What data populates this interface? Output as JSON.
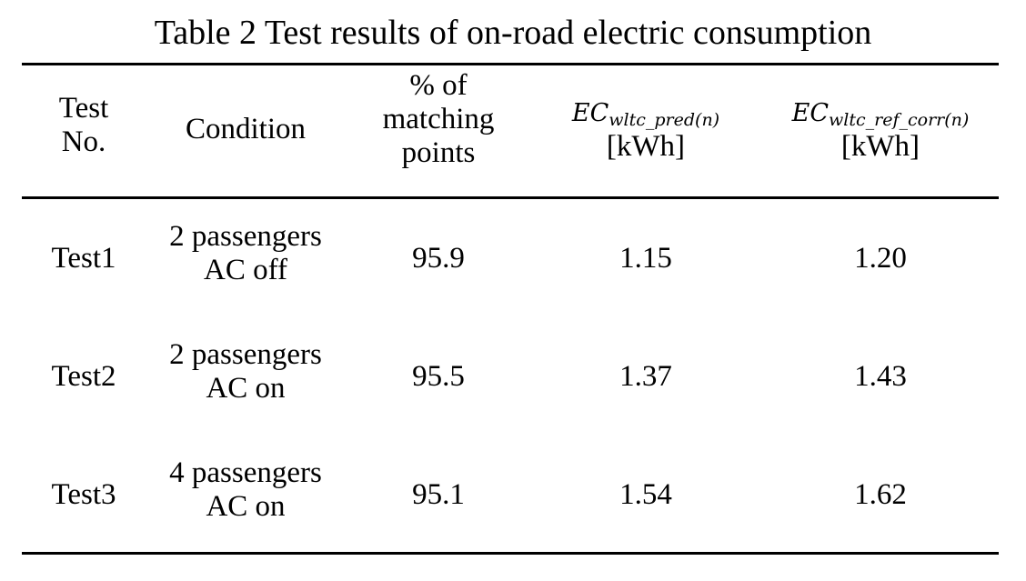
{
  "title": "Table 2 Test results of on-road electric consumption",
  "header": {
    "test_no": [
      "Test",
      "No."
    ],
    "condition": "Condition",
    "matching": [
      "% of",
      "matching",
      "points"
    ],
    "ec_pred": {
      "base": "EC",
      "sub": "wltc_pred(n)",
      "unit": "[kWh]"
    },
    "ec_ref": {
      "base": "EC",
      "sub": "wltc_ref_corr(n)",
      "unit": "[kWh]"
    }
  },
  "rows": [
    {
      "test": "Test1",
      "condition": [
        "2 passengers",
        "AC off"
      ],
      "matching": "95.9",
      "ec_pred": "1.15",
      "ec_ref": "1.20"
    },
    {
      "test": "Test2",
      "condition": [
        "2 passengers",
        "AC on"
      ],
      "matching": "95.5",
      "ec_pred": "1.37",
      "ec_ref": "1.43"
    },
    {
      "test": "Test3",
      "condition": [
        "4 passengers",
        "AC on"
      ],
      "matching": "95.1",
      "ec_pred": "1.54",
      "ec_ref": "1.62"
    }
  ]
}
